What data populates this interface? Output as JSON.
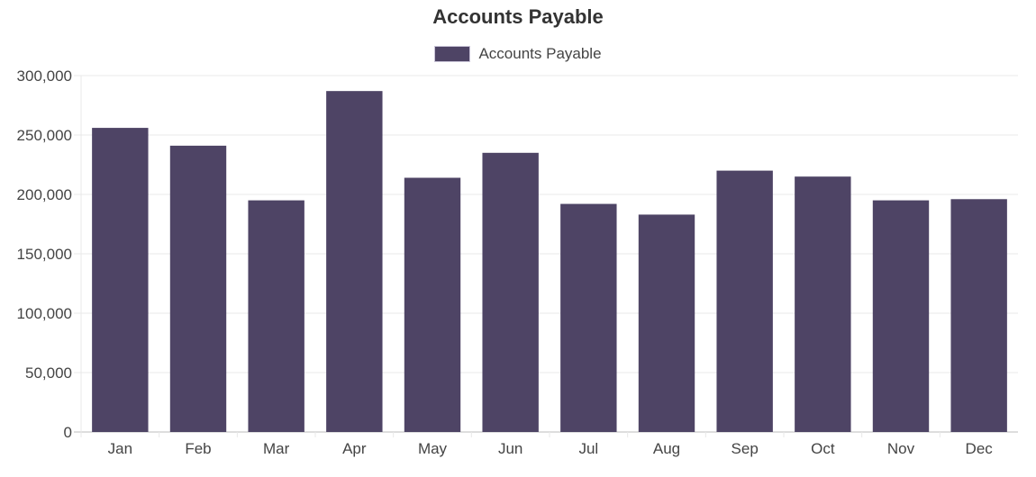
{
  "chart_data": {
    "type": "bar",
    "title": "Accounts Payable",
    "xlabel": "",
    "ylabel": "",
    "categories": [
      "Jan",
      "Feb",
      "Mar",
      "Apr",
      "May",
      "Jun",
      "Jul",
      "Aug",
      "Sep",
      "Oct",
      "Nov",
      "Dec"
    ],
    "series": [
      {
        "name": "Accounts Payable",
        "color": "#4e4465",
        "values": [
          256000,
          241000,
          195000,
          287000,
          214000,
          235000,
          192000,
          183000,
          220000,
          215000,
          195000,
          196000
        ]
      }
    ],
    "ylim": [
      0,
      300000
    ],
    "yticks": [
      "0",
      "50,000",
      "100,000",
      "150,000",
      "200,000",
      "250,000",
      "300,000"
    ],
    "grid": true,
    "legend_position": "top"
  }
}
